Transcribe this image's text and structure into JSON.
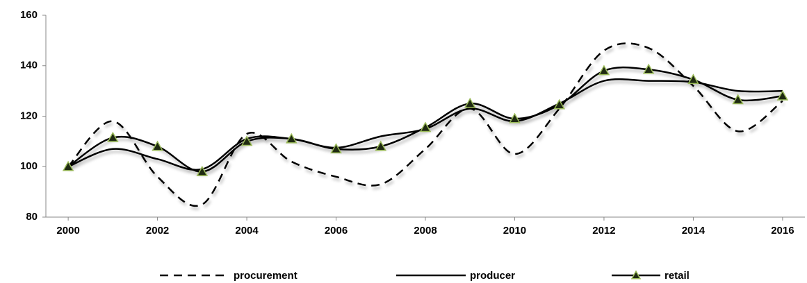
{
  "chart_data": {
    "type": "line",
    "x": [
      2000,
      2001,
      2002,
      2003,
      2004,
      2005,
      2006,
      2007,
      2008,
      2009,
      2010,
      2011,
      2012,
      2013,
      2014,
      2015,
      2016
    ],
    "series": [
      {
        "name": "procurement",
        "color": "#000000",
        "dash": true,
        "marker": false,
        "values": [
          100,
          118,
          96,
          85,
          113,
          102,
          96,
          93,
          107,
          123,
          105,
          123,
          146,
          147,
          132,
          114,
          126
        ]
      },
      {
        "name": "producer",
        "color": "#000000",
        "dash": false,
        "marker": false,
        "values": [
          100,
          107,
          103,
          99,
          111,
          111,
          107.5,
          112,
          115,
          123,
          118,
          125,
          134,
          134,
          133.5,
          130,
          130
        ]
      },
      {
        "name": "retail",
        "color": "#000000",
        "dash": false,
        "marker": true,
        "marker_color": "#1f2a12",
        "marker_edge": "#9bbb59",
        "values": [
          100,
          111.5,
          108,
          98,
          110,
          111,
          107,
          108,
          115.5,
          125,
          119,
          124.5,
          138,
          138.5,
          134.5,
          126.5,
          128
        ]
      }
    ],
    "xlim": [
      1999.5,
      2016.5
    ],
    "xticks": [
      2000,
      2002,
      2004,
      2006,
      2008,
      2010,
      2012,
      2014,
      2016
    ],
    "ylim": [
      80,
      160
    ],
    "yticks": [
      80,
      100,
      120,
      140,
      160
    ],
    "grid": false,
    "legend": "bottom"
  }
}
